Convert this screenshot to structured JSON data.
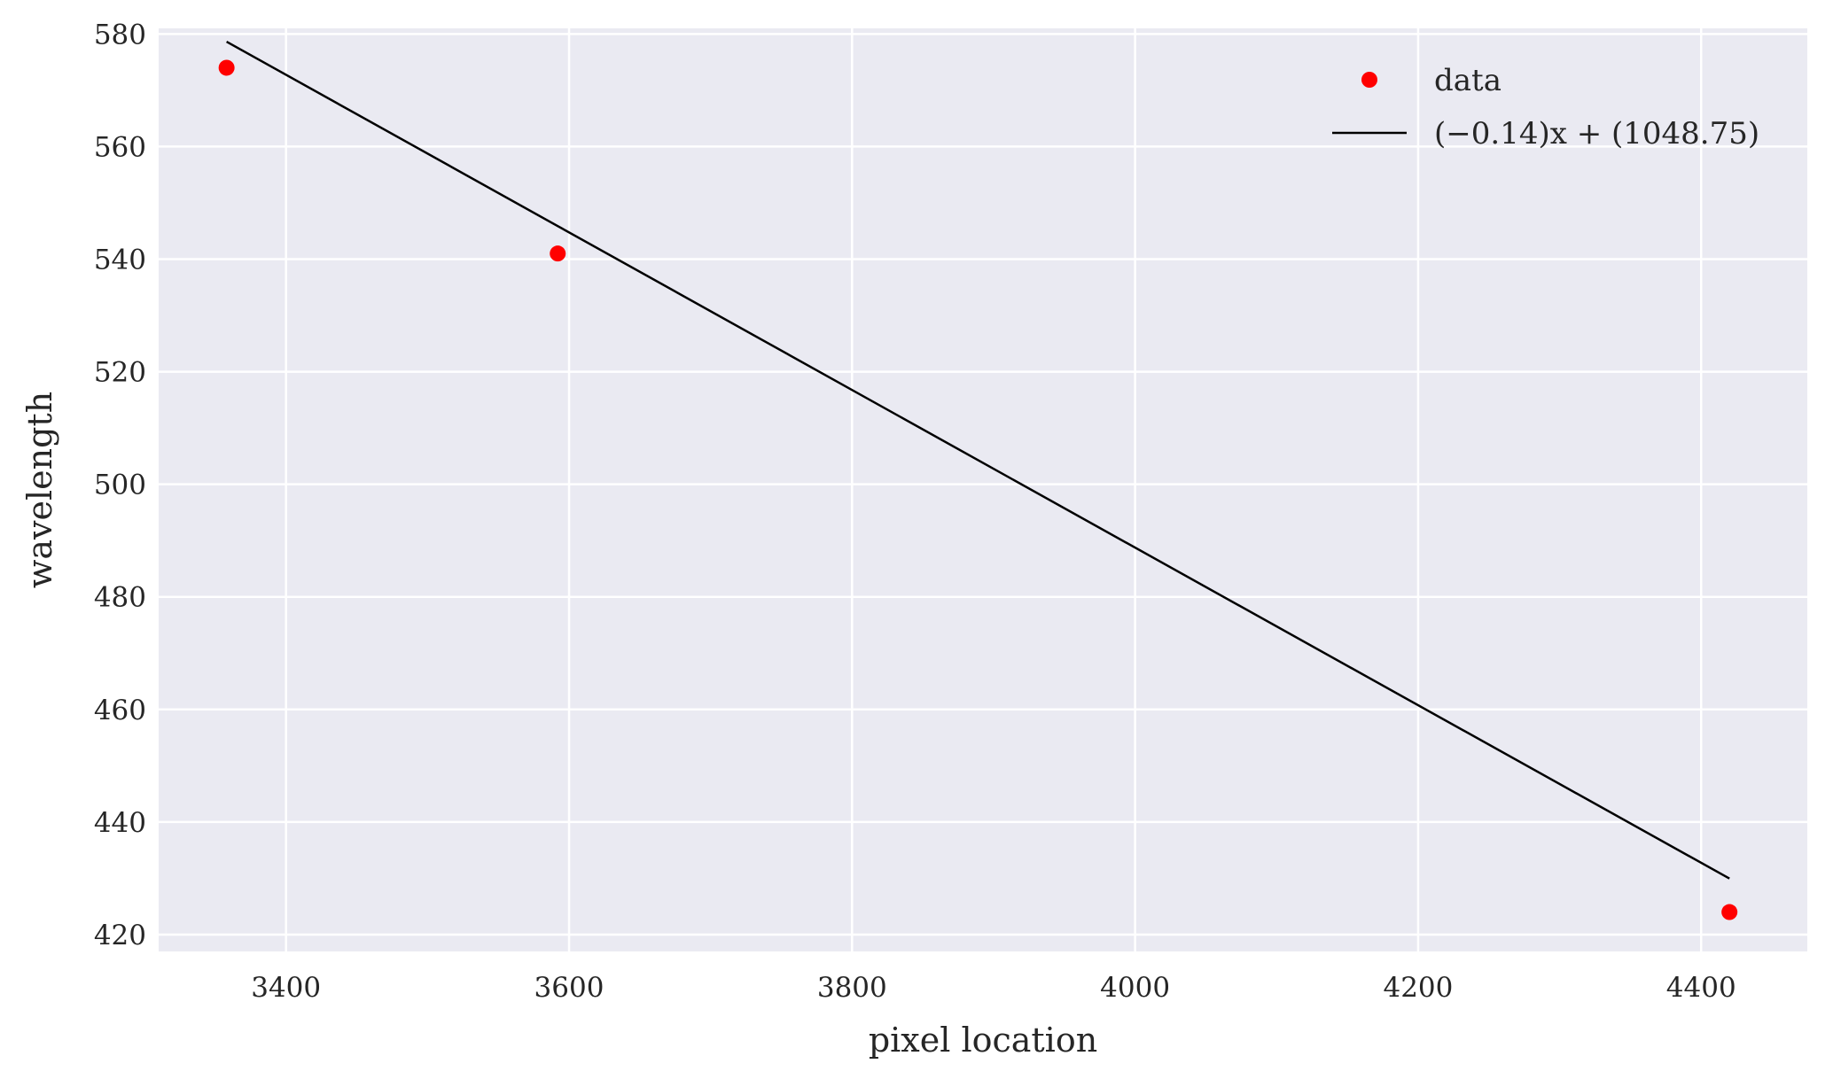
{
  "chart_data": {
    "type": "scatter",
    "xlabel": "pixel location",
    "ylabel": "wavelength",
    "xlim": [
      3310,
      4475
    ],
    "ylim": [
      417,
      581
    ],
    "xticks": [
      3400,
      3600,
      3800,
      4000,
      4200,
      4400
    ],
    "yticks": [
      420,
      440,
      460,
      480,
      500,
      520,
      540,
      560,
      580
    ],
    "grid": true,
    "legend_position": "top-right",
    "background": "#eaeaf2",
    "series": [
      {
        "name": "data",
        "kind": "scatter",
        "color": "#ff0000",
        "points": [
          {
            "x": 3358,
            "y": 574
          },
          {
            "x": 3592,
            "y": 541
          },
          {
            "x": 4420,
            "y": 424
          }
        ]
      },
      {
        "name": "(−0.14)x + (1048.75)",
        "kind": "line",
        "color": "#000000",
        "slope": -0.14,
        "intercept": 1048.75,
        "x_range": [
          3358,
          4420
        ]
      }
    ]
  }
}
